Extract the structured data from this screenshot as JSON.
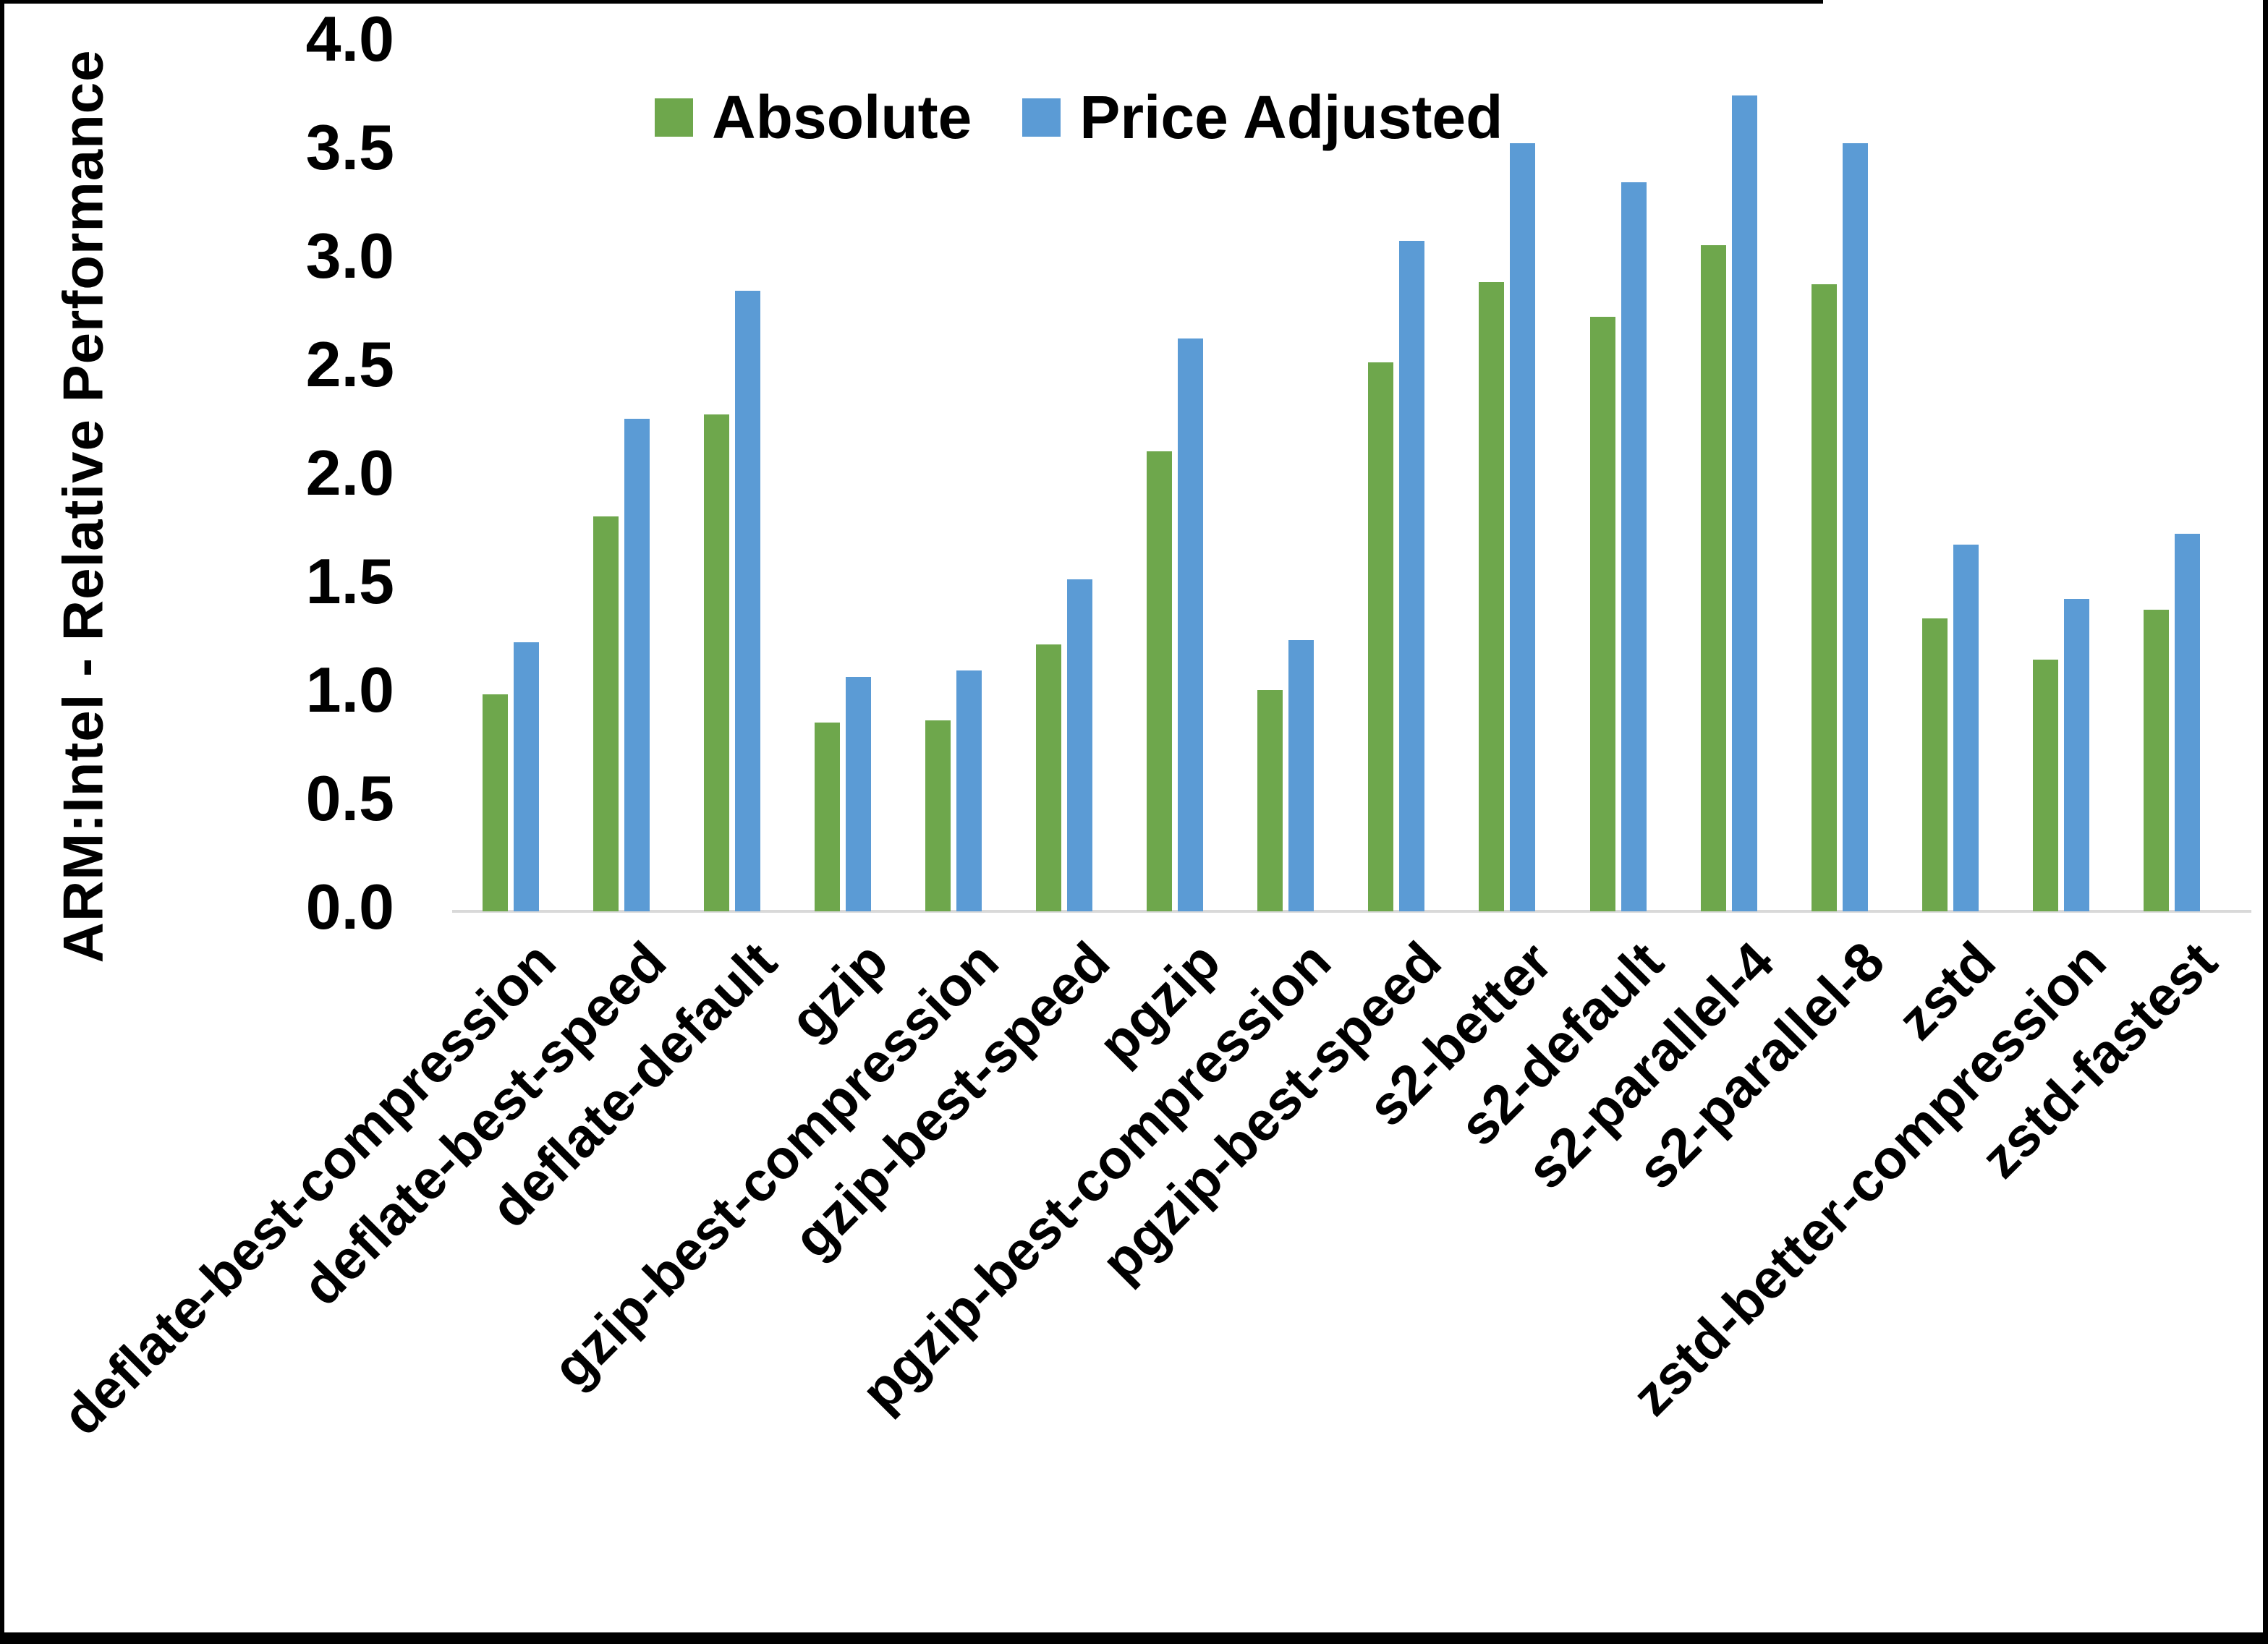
{
  "chart_data": {
    "type": "bar",
    "title": "",
    "xlabel": "",
    "ylabel": "ARM:Intel - Relative Performance",
    "ylim": [
      0.0,
      4.0
    ],
    "ytick_step": 0.5,
    "ytick_labels": [
      "0.0",
      "0.5",
      "1.0",
      "1.5",
      "2.0",
      "2.5",
      "3.0",
      "3.5",
      "4.0"
    ],
    "grid": false,
    "legend_position": "top-center",
    "categories": [
      "deflate-best-compression",
      "deflate-best-speed",
      "deflate-default",
      "gzip",
      "gzip-best-compression",
      "gzip-best-speed",
      "pgzip",
      "pgzip-best-compression",
      "pgzip-best-speed",
      "s2-better",
      "s2-default",
      "s2-parallel-4",
      "s2-parallel-8",
      "zstd",
      "zstd-better-compression",
      "zstd-fastest"
    ],
    "series": [
      {
        "name": "Absolute",
        "color": "#6EA74C",
        "values": [
          1.0,
          1.82,
          2.29,
          0.87,
          0.88,
          1.23,
          2.12,
          1.02,
          2.53,
          2.9,
          2.74,
          3.07,
          2.89,
          1.35,
          1.16,
          1.39
        ]
      },
      {
        "name": "Price Adjusted",
        "color": "#5B9BD5",
        "values": [
          1.24,
          2.27,
          2.86,
          1.08,
          1.11,
          1.53,
          2.64,
          1.25,
          3.09,
          3.54,
          3.36,
          3.76,
          3.54,
          1.69,
          1.44,
          1.74
        ]
      }
    ]
  },
  "colors": {
    "background": "#FFFFFF",
    "axis_line": "#D9D9D9",
    "text": "#000000",
    "frame": "#000000"
  }
}
